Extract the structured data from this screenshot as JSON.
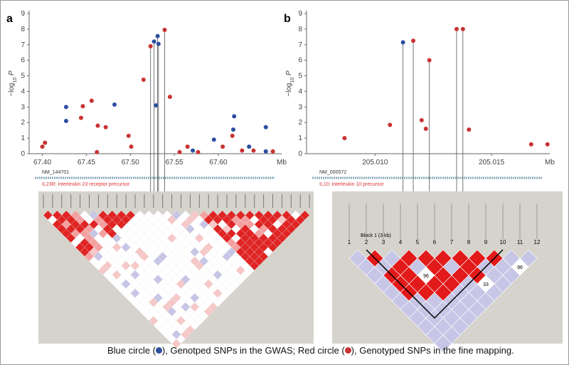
{
  "chart_data": [
    {
      "type": "scatter",
      "panel_label": "a",
      "ylabel": [
        "−log",
        "10",
        " P"
      ],
      "xunit": "Mb",
      "xlim": [
        67.385,
        67.672
      ],
      "ylim": [
        0,
        9
      ],
      "xticks": [
        {
          "value": 67.4,
          "label": "67.40"
        },
        {
          "value": 67.45,
          "label": "67.45"
        },
        {
          "value": 67.5,
          "label": "67.50"
        },
        {
          "value": 67.55,
          "label": "67.55"
        },
        {
          "value": 67.6,
          "label": "67.60"
        }
      ],
      "yticks": [
        0,
        1,
        2,
        3,
        4,
        5,
        6,
        7,
        8,
        9
      ],
      "series": [
        {
          "color": "#2d4fa0",
          "x": [
            67.427,
            67.427,
            67.482,
            67.529,
            67.527,
            67.531,
            67.532,
            67.571,
            67.595,
            67.618,
            67.617,
            67.635,
            67.654,
            67.654
          ],
          "values": [
            3.0,
            2.1,
            3.15,
            3.1,
            7.2,
            7.55,
            7.05,
            0.2,
            0.9,
            2.4,
            1.55,
            0.45,
            1.7,
            0.15
          ]
        },
        {
          "color": "#c83232",
          "x": [
            67.4,
            67.403,
            67.446,
            67.444,
            67.456,
            67.463,
            67.462,
            67.472,
            67.498,
            67.501,
            67.515,
            67.523,
            67.539,
            67.545,
            67.556,
            67.565,
            67.577,
            67.605,
            67.616,
            67.627,
            67.64,
            67.662
          ],
          "values": [
            0.45,
            0.7,
            3.05,
            2.3,
            3.4,
            1.8,
            0.1,
            1.7,
            1.15,
            0.45,
            4.75,
            6.9,
            7.95,
            3.65,
            0.1,
            0.45,
            0.1,
            0.45,
            1.15,
            0.2,
            0.2,
            0.15
          ]
        }
      ],
      "gene": {
        "id": "NM_144701",
        "desc": "IL23R: interleukin 23 receptor precursor"
      }
    },
    {
      "type": "scatter",
      "panel_label": "b",
      "ylabel": [
        "−log",
        "10",
        " P"
      ],
      "xunit": "Mb",
      "xlim": [
        205.00706,
        205.0175
      ],
      "ylim": [
        0,
        9
      ],
      "xticks": [
        {
          "value": 205.01,
          "label": "205.010"
        },
        {
          "value": 205.015,
          "label": "205.015"
        }
      ],
      "yticks": [
        0,
        1,
        2,
        3,
        4,
        5,
        6,
        7,
        8,
        9
      ],
      "series": [
        {
          "color": "#2d4fa0",
          "x": [
            205.0112
          ],
          "values": [
            7.15
          ]
        },
        {
          "color": "#c83232",
          "x": [
            205.00869,
            205.01064,
            205.01164,
            205.012,
            205.01218,
            205.01233,
            205.0135,
            205.01377,
            205.01403,
            205.0167,
            205.0174
          ],
          "values": [
            1.0,
            1.85,
            7.25,
            2.15,
            1.6,
            6.0,
            8.0,
            8.0,
            1.55,
            0.6,
            0.6
          ]
        }
      ],
      "gene": {
        "id": "NM_000572",
        "desc": "IL10: interleukin 10 precursor"
      },
      "ld": {
        "block": "Block 1 (3 kb)",
        "markers": [
          "1",
          "2",
          "3",
          "4",
          "5",
          "6",
          "7",
          "8",
          "9",
          "10",
          "11",
          "12"
        ],
        "cell_labels": [
          "96",
          "33",
          "96"
        ]
      }
    }
  ],
  "caption": [
    "Blue circle (",
    "), Genotped SNPs in the GWAS; Red circle (",
    "), Genotyped SNPs in the fine mapping."
  ]
}
